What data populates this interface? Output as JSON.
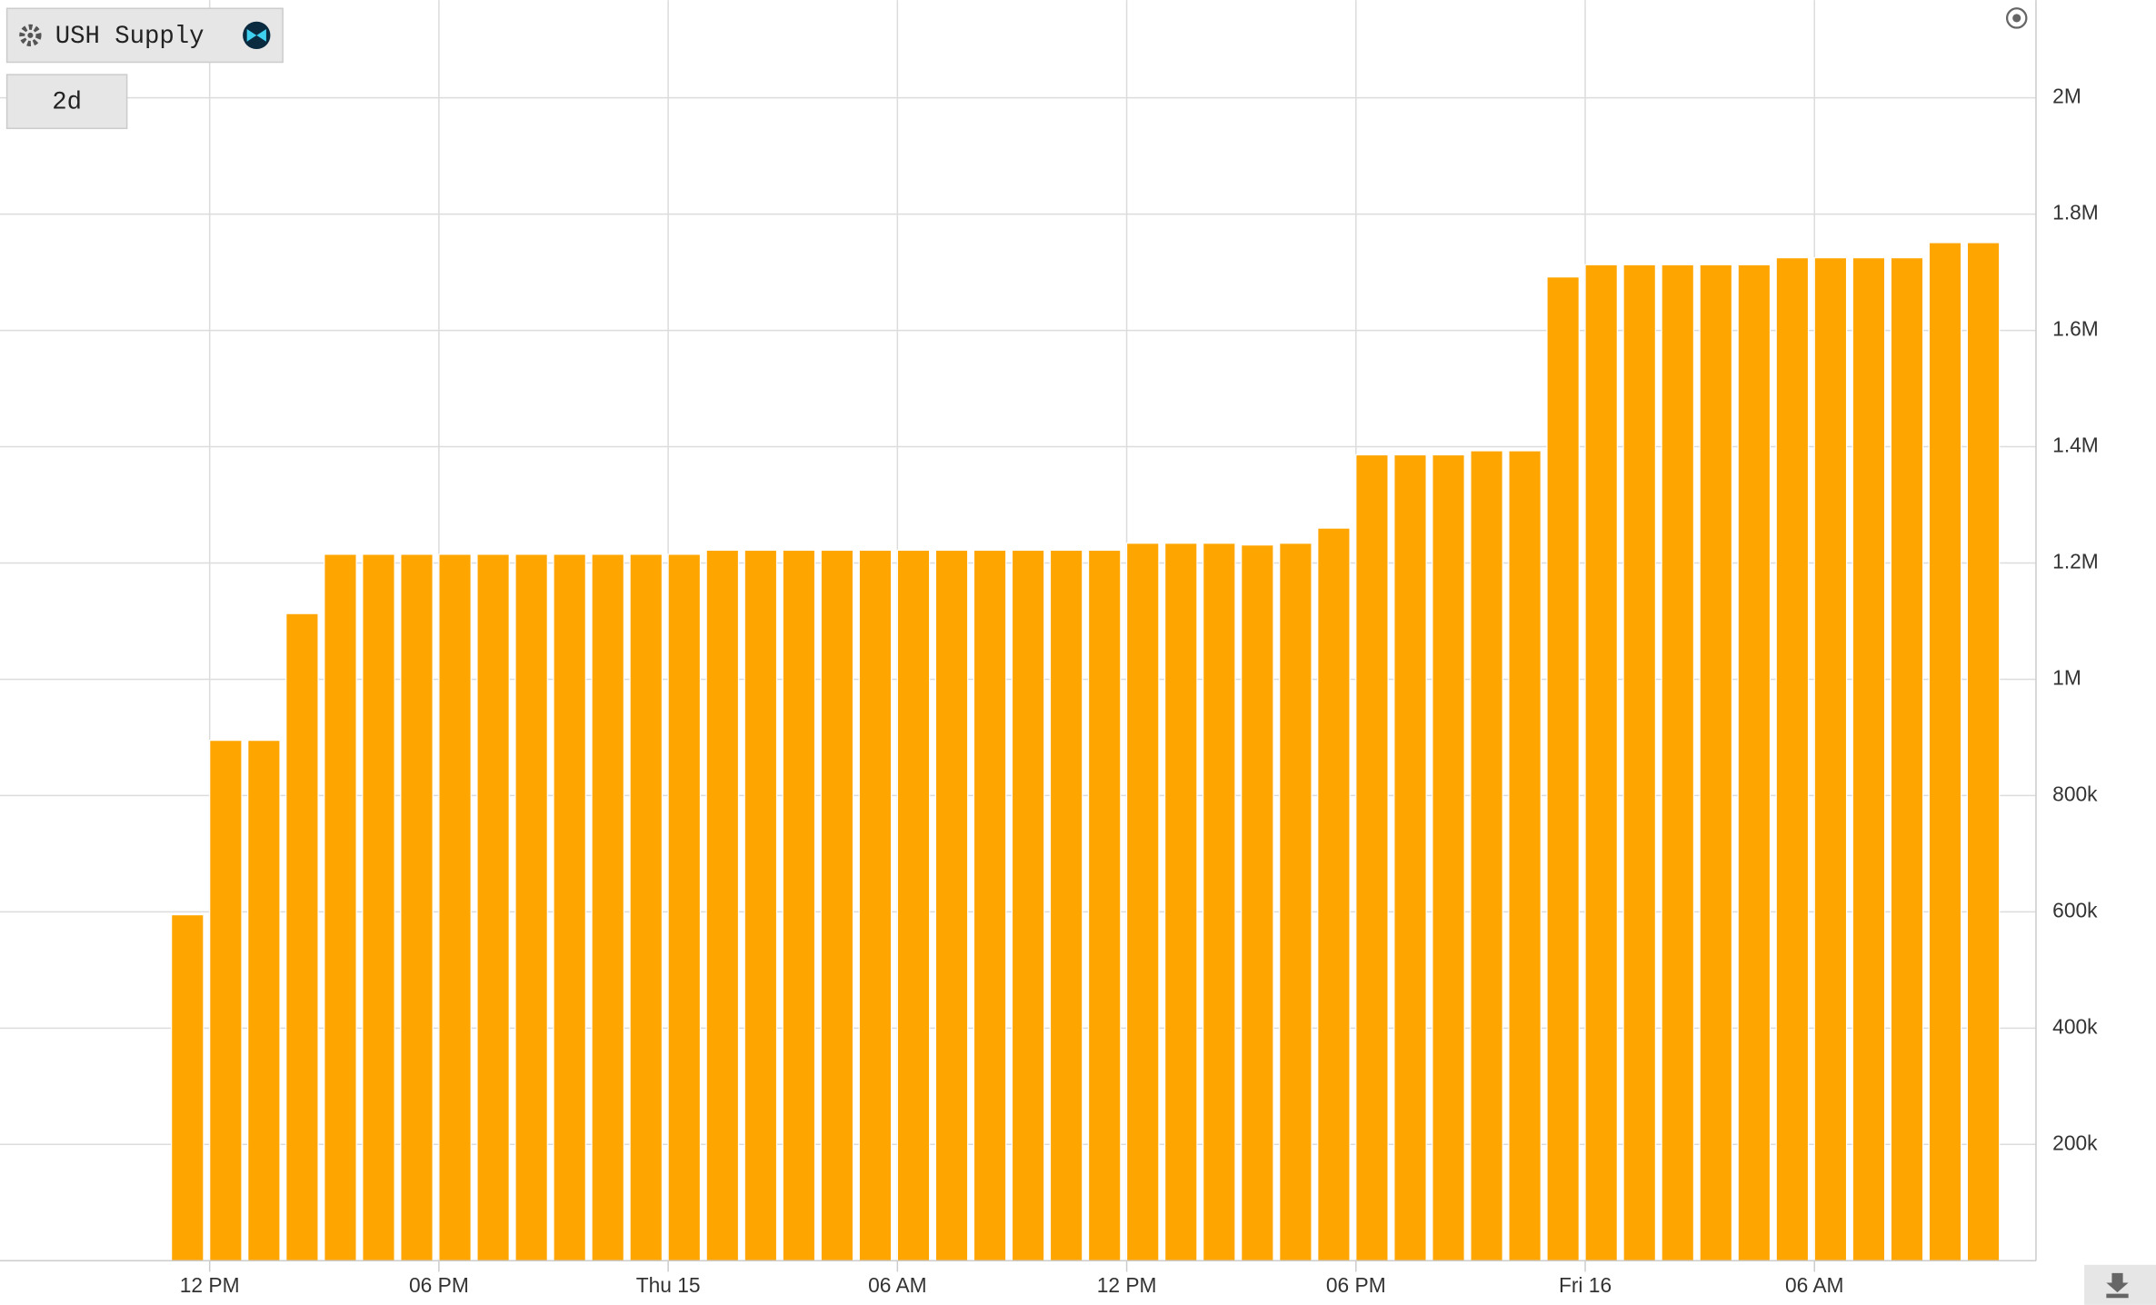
{
  "chart_data": {
    "type": "bar",
    "title": "USH Supply",
    "range": "2d",
    "color": "#ffa500",
    "categories": [
      null,
      "12 PM",
      null,
      null,
      null,
      null,
      null,
      "06 PM",
      null,
      null,
      null,
      null,
      null,
      "Thu 15",
      null,
      null,
      null,
      null,
      null,
      "06 AM",
      null,
      null,
      null,
      null,
      null,
      "12 PM",
      null,
      null,
      null,
      null,
      null,
      "06 PM",
      null,
      null,
      null,
      null,
      null,
      "Fri 16",
      null,
      null,
      null,
      null,
      null,
      "06 AM",
      null,
      null,
      null,
      null
    ],
    "values": [
      595000,
      895000,
      895000,
      1113000,
      1215000,
      1215000,
      1215000,
      1215000,
      1215000,
      1215000,
      1215000,
      1215000,
      1215000,
      1215000,
      1222000,
      1222000,
      1222000,
      1222000,
      1222000,
      1222000,
      1222000,
      1222000,
      1222000,
      1222000,
      1222000,
      1234000,
      1234000,
      1234000,
      1231000,
      1234000,
      1260000,
      1386000,
      1386000,
      1386000,
      1393000,
      1393000,
      1692000,
      1713000,
      1713000,
      1713000,
      1713000,
      1713000,
      1725000,
      1725000,
      1725000,
      1725000,
      1751000,
      1751000
    ],
    "ylim": [
      0,
      2168000
    ],
    "yticks": [
      {
        "value": 200000,
        "label": "200k"
      },
      {
        "value": 400000,
        "label": "400k"
      },
      {
        "value": 600000,
        "label": "600k"
      },
      {
        "value": 800000,
        "label": "800k"
      },
      {
        "value": 1000000,
        "label": "1M"
      },
      {
        "value": 1200000,
        "label": "1.2M"
      },
      {
        "value": 1400000,
        "label": "1.4M"
      },
      {
        "value": 1600000,
        "label": "1.6M"
      },
      {
        "value": 1800000,
        "label": "1.8M"
      },
      {
        "value": 2000000,
        "label": "2M"
      }
    ],
    "grid": true
  }
}
